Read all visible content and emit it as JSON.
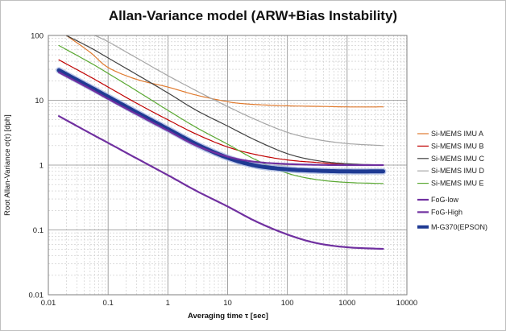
{
  "chart_data": {
    "type": "line",
    "title": "Allan-Variance model (ARW+Bias Instability)",
    "xlabel": "Averaging time  τ [sec]",
    "ylabel": "Root Allan-Variance  σ(τ) [dph]",
    "x_scale": "log",
    "y_scale": "log",
    "xlim": [
      0.01,
      10000
    ],
    "ylim": [
      0.01,
      100
    ],
    "x_ticks": [
      "0.01",
      "0.1",
      "1",
      "10",
      "100",
      "1000",
      "10000"
    ],
    "y_ticks": [
      "100",
      "10",
      "1",
      "0.1",
      "0.01"
    ],
    "grid": true,
    "legend_position": "right",
    "series": [
      {
        "name": "Si-MEMS IMU A",
        "color": "#e07a2e",
        "width": 1.2,
        "x": [
          0.02,
          0.05,
          0.1,
          0.3,
          1,
          3,
          10,
          20,
          50,
          100,
          500,
          1000,
          4000
        ],
        "y": [
          100,
          55,
          32,
          21,
          16,
          12,
          9.5,
          8.8,
          8.4,
          8.2,
          8.0,
          7.9,
          7.9
        ]
      },
      {
        "name": "Si-MEMS IMU B",
        "color": "#c00000",
        "width": 1.2,
        "x": [
          0.015,
          0.05,
          0.1,
          0.3,
          1,
          3,
          10,
          30,
          100,
          300,
          1000,
          4000
        ],
        "y": [
          42,
          23,
          16,
          9,
          5,
          3,
          1.9,
          1.45,
          1.2,
          1.1,
          1.02,
          1.0
        ]
      },
      {
        "name": "Si-MEMS IMU C",
        "color": "#404040",
        "width": 1.2,
        "x": [
          0.02,
          0.05,
          0.1,
          0.3,
          1,
          3,
          10,
          30,
          100,
          300,
          1000,
          4000
        ],
        "y": [
          100,
          65,
          45,
          25,
          13,
          7,
          4,
          2.4,
          1.5,
          1.18,
          1.05,
          1.0
        ]
      },
      {
        "name": "Si-MEMS IMU D",
        "color": "#a6a6a6",
        "width": 1.2,
        "x": [
          0.06,
          0.1,
          0.3,
          1,
          3,
          10,
          30,
          100,
          300,
          1000,
          4000
        ],
        "y": [
          100,
          80,
          45,
          24,
          14,
          8,
          5,
          3.2,
          2.5,
          2.15,
          2.0
        ]
      },
      {
        "name": "Si-MEMS IMU E",
        "color": "#5aa832",
        "width": 1.2,
        "x": [
          0.015,
          0.05,
          0.1,
          0.3,
          1,
          3,
          10,
          30,
          100,
          300,
          1000,
          4000
        ],
        "y": [
          70,
          38,
          26,
          14,
          7,
          3.8,
          2.1,
          1.2,
          0.75,
          0.6,
          0.54,
          0.52
        ]
      },
      {
        "name": "FoG-low",
        "color": "#7030a0",
        "width": 2.2,
        "x": [
          0.015,
          0.05,
          0.1,
          0.3,
          1,
          3,
          10,
          30,
          100,
          300,
          1000,
          4000
        ],
        "y": [
          5.7,
          3.1,
          2.2,
          1.27,
          0.7,
          0.4,
          0.23,
          0.135,
          0.085,
          0.063,
          0.054,
          0.051
        ]
      },
      {
        "name": "FoG-High",
        "color": "#7030a0",
        "width": 2.2,
        "x": [
          0.015,
          0.05,
          0.1,
          0.3,
          1,
          3,
          10,
          30,
          100,
          300,
          1000,
          4000
        ],
        "y": [
          27,
          15,
          10.5,
          6.1,
          3.4,
          2.0,
          1.35,
          1.12,
          1.04,
          1.01,
          1.0,
          1.0
        ]
      },
      {
        "name": "M-G370(EPSON)",
        "color": "#1f3a93",
        "width": 5,
        "x": [
          0.015,
          0.05,
          0.1,
          0.3,
          1,
          3,
          10,
          30,
          100,
          300,
          1000,
          4000
        ],
        "y": [
          29,
          16,
          11.3,
          6.5,
          3.6,
          2.1,
          1.3,
          0.98,
          0.86,
          0.82,
          0.8,
          0.8
        ]
      }
    ]
  }
}
